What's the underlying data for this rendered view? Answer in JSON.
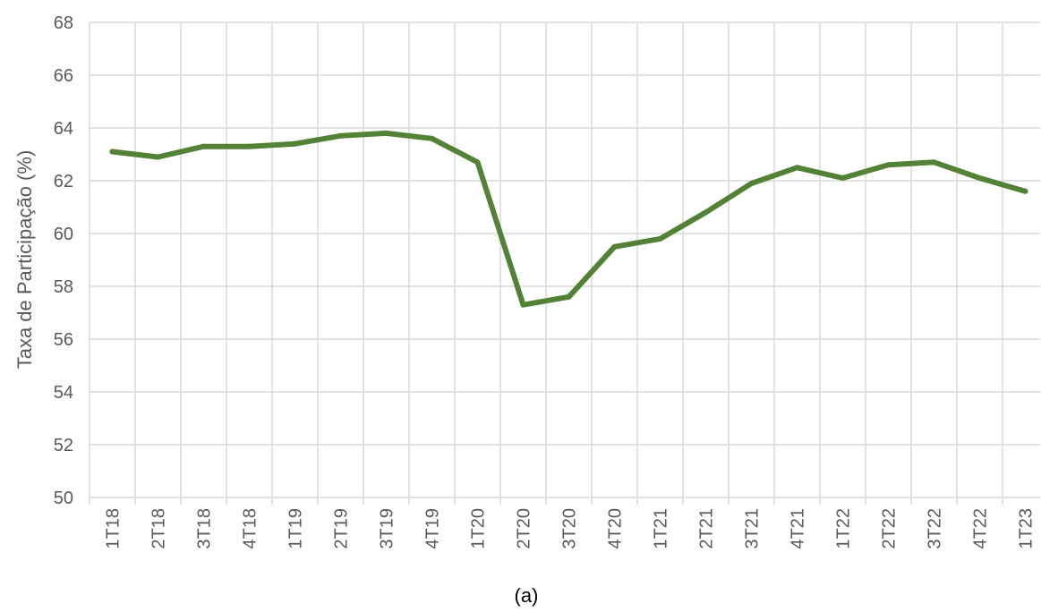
{
  "chart_data": {
    "type": "line",
    "title": "",
    "xlabel": "",
    "ylabel": "Taxa de Participação (%)",
    "caption": "(a)",
    "ylim": [
      50,
      68
    ],
    "yticks": [
      50,
      52,
      54,
      56,
      58,
      60,
      62,
      64,
      66,
      68
    ],
    "grid": true,
    "legend": "none",
    "categories": [
      "1T18",
      "2T18",
      "3T18",
      "4T18",
      "1T19",
      "2T19",
      "3T19",
      "4T19",
      "1T20",
      "2T20",
      "3T20",
      "4T20",
      "1T21",
      "2T21",
      "3T21",
      "4T21",
      "1T22",
      "2T22",
      "3T22",
      "4T22",
      "1T23"
    ],
    "series": [
      {
        "color": "#538135",
        "values": [
          63.1,
          62.9,
          63.3,
          63.3,
          63.4,
          63.7,
          63.8,
          63.6,
          62.7,
          57.3,
          57.6,
          59.5,
          59.8,
          60.8,
          61.9,
          62.5,
          62.1,
          62.6,
          62.7,
          62.1,
          61.6
        ]
      }
    ]
  }
}
